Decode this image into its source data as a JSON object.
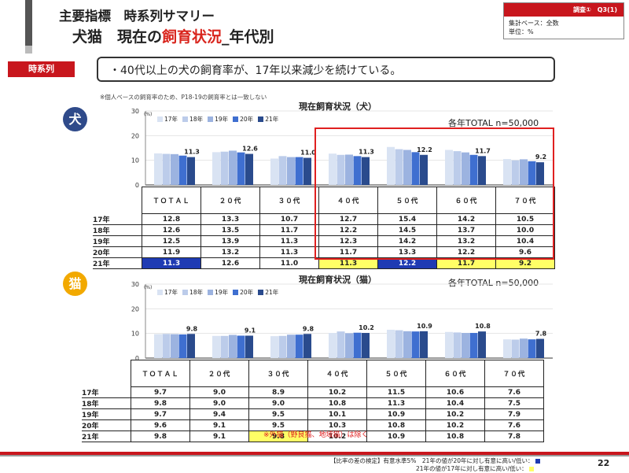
{
  "header": {
    "title_line1": "主要指標　時系列サマリー",
    "title_line2_pre": "犬猫　現在の",
    "title_line2_hl": "飼育状況",
    "title_line2_post": "_年代別"
  },
  "qbox": {
    "id": "調査①　Q3(1)",
    "base": "集計ベース：全数",
    "unit": "単位：%"
  },
  "tag": "時系列",
  "summary": "・40代以上の犬の飼育率が、17年以来減少を続けている。",
  "note": "※個人ベースの飼育率のため、P18-19の飼育率とは一致しない",
  "colors": {
    "y17": "#d9e3f3",
    "y18": "#bcccea",
    "y19": "#9cb3e0",
    "y20": "#3f6fd0",
    "y21": "#2a4b8d",
    "accent": "#c8161d",
    "dog_circle": "#2f4a8a",
    "cat_circle": "#f2a900",
    "highlight_yellow": "#ffff66",
    "highlight_blue": "#1f3bb3"
  },
  "legend": [
    "17年",
    "18年",
    "19年",
    "20年",
    "21年"
  ],
  "dog": {
    "label": "犬",
    "title": "現在飼育状況（犬）",
    "base": "各年TOTAL n=50,000"
  },
  "cat": {
    "label": "猫",
    "title": "現在飼育状況（猫）",
    "base": "各年TOTAL n=50,000"
  },
  "chart_data": [
    {
      "type": "bar",
      "title": "現在飼育状況（犬）",
      "ylabel": "(%)",
      "ylim": [
        0,
        30
      ],
      "yticks": [
        "0",
        "10",
        "20",
        "30"
      ],
      "categories": [
        "ＴＯＴＡＬ",
        "２０代",
        "３０代",
        "４０代",
        "５０代",
        "６０代",
        "７０代"
      ],
      "series": [
        {
          "name": "17年",
          "values": [
            12.8,
            13.3,
            10.7,
            12.7,
            15.4,
            14.2,
            10.5
          ]
        },
        {
          "name": "18年",
          "values": [
            12.6,
            13.5,
            11.7,
            12.2,
            14.5,
            13.7,
            10.0
          ]
        },
        {
          "name": "19年",
          "values": [
            12.5,
            13.9,
            11.3,
            12.3,
            14.2,
            13.2,
            10.4
          ]
        },
        {
          "name": "20年",
          "values": [
            11.9,
            13.2,
            11.3,
            11.7,
            13.3,
            12.2,
            9.6
          ]
        },
        {
          "name": "21年",
          "values": [
            11.3,
            12.6,
            11.0,
            11.3,
            12.2,
            11.7,
            9.2
          ]
        }
      ],
      "data_labels": [
        "11.3",
        "12.6",
        "11.0",
        "11.3",
        "12.2",
        "11.7",
        "9.2"
      ],
      "table": [
        {
          "year": "17年",
          "cells": [
            "12.8",
            "13.3",
            "10.7",
            "12.7",
            "15.4",
            "14.2",
            "10.5"
          ]
        },
        {
          "year": "18年",
          "cells": [
            "12.6",
            "13.5",
            "11.7",
            "12.2",
            "14.5",
            "13.7",
            "10.0"
          ]
        },
        {
          "year": "19年",
          "cells": [
            "12.5",
            "13.9",
            "11.3",
            "12.3",
            "14.2",
            "13.2",
            "10.4"
          ]
        },
        {
          "year": "20年",
          "cells": [
            "11.9",
            "13.2",
            "11.3",
            "11.7",
            "13.3",
            "12.2",
            "9.6"
          ]
        },
        {
          "year": "21年",
          "cells": [
            "11.3",
            "12.6",
            "11.0",
            "11.3",
            "12.2",
            "11.7",
            "9.2"
          ],
          "marks": [
            "blue",
            "",
            "",
            "yellow",
            "blue",
            "yellow",
            "yellow"
          ]
        }
      ]
    },
    {
      "type": "bar",
      "title": "現在飼育状況（猫）",
      "ylabel": "(%)",
      "ylim": [
        0,
        30
      ],
      "yticks": [
        "0",
        "10",
        "20",
        "30"
      ],
      "categories": [
        "ＴＯＴＡＬ",
        "２０代",
        "３０代",
        "４０代",
        "５０代",
        "６０代",
        "７０代"
      ],
      "series": [
        {
          "name": "17年",
          "values": [
            9.7,
            9.0,
            8.9,
            10.2,
            11.5,
            10.6,
            7.6
          ]
        },
        {
          "name": "18年",
          "values": [
            9.8,
            9.0,
            9.0,
            10.8,
            11.3,
            10.4,
            7.5
          ]
        },
        {
          "name": "19年",
          "values": [
            9.7,
            9.4,
            9.5,
            10.1,
            10.9,
            10.2,
            7.9
          ]
        },
        {
          "name": "20年",
          "values": [
            9.6,
            9.1,
            9.5,
            10.3,
            10.8,
            10.2,
            7.6
          ]
        },
        {
          "name": "21年",
          "values": [
            9.8,
            9.1,
            9.8,
            10.2,
            10.9,
            10.8,
            7.8
          ]
        }
      ],
      "data_labels": [
        "9.8",
        "9.1",
        "9.8",
        "10.2",
        "10.9",
        "10.8",
        "7.8"
      ],
      "table": [
        {
          "year": "17年",
          "cells": [
            "9.7",
            "9.0",
            "8.9",
            "10.2",
            "11.5",
            "10.6",
            "7.6"
          ]
        },
        {
          "year": "18年",
          "cells": [
            "9.8",
            "9.0",
            "9.0",
            "10.8",
            "11.3",
            "10.4",
            "7.5"
          ]
        },
        {
          "year": "19年",
          "cells": [
            "9.7",
            "9.4",
            "9.5",
            "10.1",
            "10.9",
            "10.2",
            "7.9"
          ]
        },
        {
          "year": "20年",
          "cells": [
            "9.6",
            "9.1",
            "9.5",
            "10.3",
            "10.8",
            "10.2",
            "7.6"
          ]
        },
        {
          "year": "21年",
          "cells": [
            "9.8",
            "9.1",
            "9.8",
            "10.2",
            "10.9",
            "10.8",
            "7.8"
          ],
          "marks": [
            "",
            "",
            "yellow",
            "",
            "",
            "",
            ""
          ]
        }
      ]
    }
  ],
  "outer_note": "※外猫（野良猫、地域猫）は除く",
  "footer": {
    "line1": "【比率の差の検定】有意水準5%　21年の値が20年に対し有意に高い/低い：",
    "line2": "21年の値が17年に対し有意に高い/低い：",
    "page": "22"
  }
}
